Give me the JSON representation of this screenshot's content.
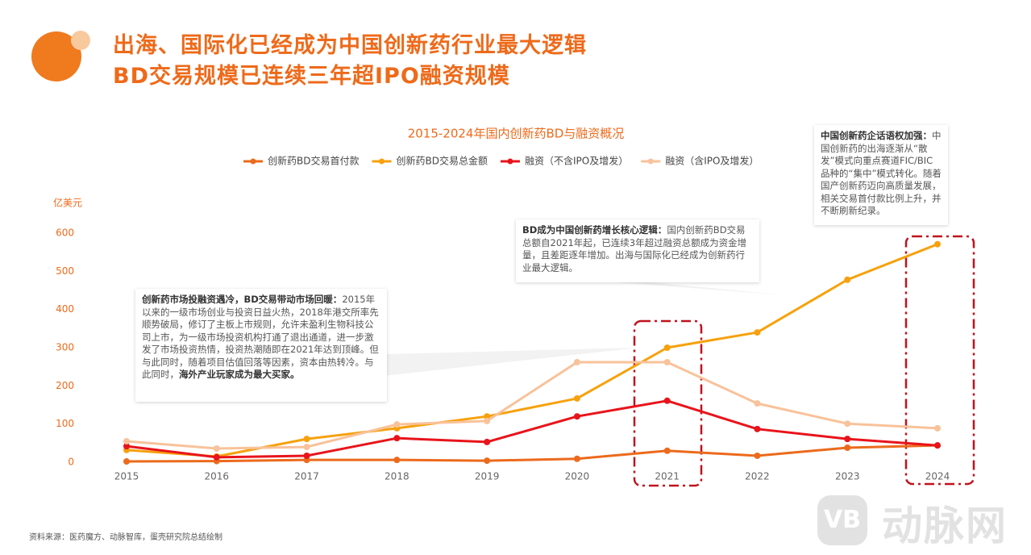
{
  "header": {
    "line1": "出海、国际化已经成为中国创新药行业最大逻辑",
    "line2": "BD交易规模已连续三年超IPO融资规模"
  },
  "chart_data": {
    "type": "line",
    "title": "2015-2024年国内创新药BD与融资概况",
    "y_label": "亿美元",
    "categories": [
      "2015",
      "2016",
      "2017",
      "2018",
      "2019",
      "2020",
      "2021",
      "2022",
      "2023",
      "2024"
    ],
    "series": [
      {
        "name": "创新药BD交易首付款",
        "color": "#ec6a1c",
        "values": [
          2,
          3,
          6,
          6,
          4,
          9,
          30,
          17,
          38,
          44
        ]
      },
      {
        "name": "创新药BD交易总金额",
        "color": "#f6a10d",
        "values": [
          32,
          15,
          61,
          89,
          120,
          167,
          300,
          340,
          478,
          571
        ]
      },
      {
        "name": "融资（不含IPO及增发）",
        "color": "#e8141b",
        "values": [
          42,
          13,
          17,
          63,
          53,
          120,
          161,
          87,
          61,
          44
        ]
      },
      {
        "name": "融资（含IPO及增发）",
        "color": "#f8c29a",
        "values": [
          55,
          36,
          40,
          99,
          108,
          262,
          262,
          154,
          101,
          89
        ]
      }
    ],
    "ylim": [
      0,
      600
    ],
    "yticks": [
      0,
      100,
      200,
      300,
      400,
      500,
      600
    ],
    "grid": false,
    "legend": "top"
  },
  "annotations": [
    {
      "head": "创新药市场投融资遇冷，BD交易带动市场回暖：",
      "body": "2015年以来的一级市场创业与投资日益火热，2018年港交所率先顺势破局，修订了主板上市规则，允许未盈利生物科技公司上市，为一级市场投资机构打通了退出通道，进一步激发了市场投资热情，投资热潮随即在2021年达到顶峰。但与此同时，随着项目估值回落等因素，资本由热转冷。与此同时，",
      "tail": "海外产业玩家成为最大买家。"
    },
    {
      "head": "BD成为中国创新药增长核心逻辑：",
      "body": "国内创新药BD交易总额自2021年起，已连续3年超过融资总额成为资金增量，且差距逐年增加。出海与国际化已经成为创新药行业最大逻辑。"
    },
    {
      "head": "中国创新药企话语权加强：",
      "body": "中国创新药的出海逐渐从“散发”模式向重点赛道FIC/BIC品种的“集中”模式转化。随着国产创新药迈向高质量发展，相关交易首付款比例上升，并不断刷新纪录。"
    }
  ],
  "footer": {
    "source": "资料来源：医药魔方、动脉智库，蛋壳研究院总结绘制"
  },
  "watermark": {
    "logo": "VB",
    "text": "动脉网"
  }
}
